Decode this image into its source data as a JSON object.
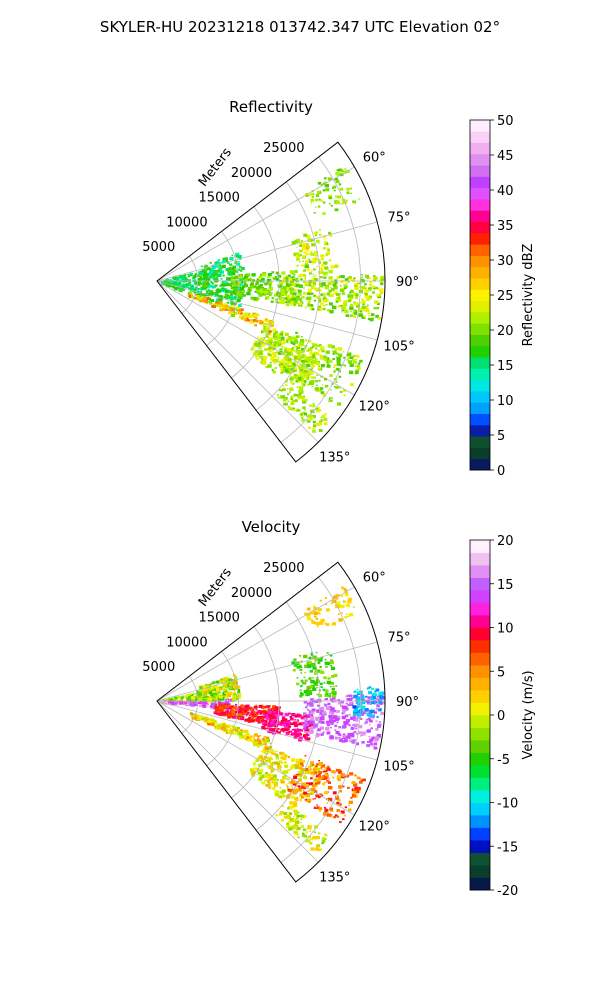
{
  "suptitle": "SKYLER-HU  20231218  013742.347 UTC Elevation 02°",
  "chart_data": [
    {
      "type": "heatmap",
      "subtype": "polar-sector radar PPI",
      "title": "Reflectivity",
      "radial_label": "Meters",
      "radial_ticks": [
        5000,
        10000,
        15000,
        20000,
        25000
      ],
      "radial_range": [
        0,
        28000
      ],
      "angle_ticks": [
        "60°",
        "75°",
        "90°",
        "105°",
        "120°",
        "135°"
      ],
      "angle_range_deg": [
        52.5,
        142.5
      ],
      "grid": true,
      "colorbar": {
        "label": "Reflectivity dBZ",
        "range": [
          0,
          50
        ],
        "ticks": [
          0,
          5,
          10,
          15,
          20,
          25,
          30,
          35,
          40,
          45,
          50
        ],
        "colors": [
          "#0b1a5c",
          "#0a3d2a",
          "#11502f",
          "#0a1fa8",
          "#0050ff",
          "#00a0ff",
          "#00c8ff",
          "#00e8e0",
          "#00f0b0",
          "#00e070",
          "#20d000",
          "#50d000",
          "#80e000",
          "#b0f000",
          "#e0f000",
          "#fff000",
          "#ffd000",
          "#ffb000",
          "#ff9000",
          "#ff6000",
          "#ff2000",
          "#ff0040",
          "#ff0090",
          "#ff30e0",
          "#e050ff",
          "#c040ff",
          "#d070f0",
          "#e090f0",
          "#f0b0f0",
          "#f8d0f8",
          "#fff0ff"
        ]
      }
    },
    {
      "type": "heatmap",
      "subtype": "polar-sector radar PPI",
      "title": "Velocity",
      "radial_label": "Meters",
      "radial_ticks": [
        5000,
        10000,
        15000,
        20000,
        25000
      ],
      "radial_range": [
        0,
        28000
      ],
      "angle_ticks": [
        "60°",
        "75°",
        "90°",
        "105°",
        "120°",
        "135°"
      ],
      "angle_range_deg": [
        52.5,
        142.5
      ],
      "grid": true,
      "colorbar": {
        "label": "Velocity (m/s)",
        "range": [
          -20,
          20
        ],
        "ticks": [
          -20,
          -15,
          -10,
          -5,
          0,
          5,
          10,
          15,
          20
        ],
        "colors": [
          "#061a4a",
          "#0a3d2a",
          "#115030",
          "#0010c0",
          "#0040ff",
          "#0090ff",
          "#00d0ff",
          "#00f0e0",
          "#00f080",
          "#00e030",
          "#20d000",
          "#60d000",
          "#90e000",
          "#c0f000",
          "#f0f000",
          "#ffd000",
          "#ffb000",
          "#ff9000",
          "#ff6000",
          "#ff3000",
          "#ff0030",
          "#ff0090",
          "#ff20e0",
          "#d040ff",
          "#c060ff",
          "#e090f0",
          "#f0c0f0",
          "#fff0ff"
        ]
      }
    }
  ]
}
